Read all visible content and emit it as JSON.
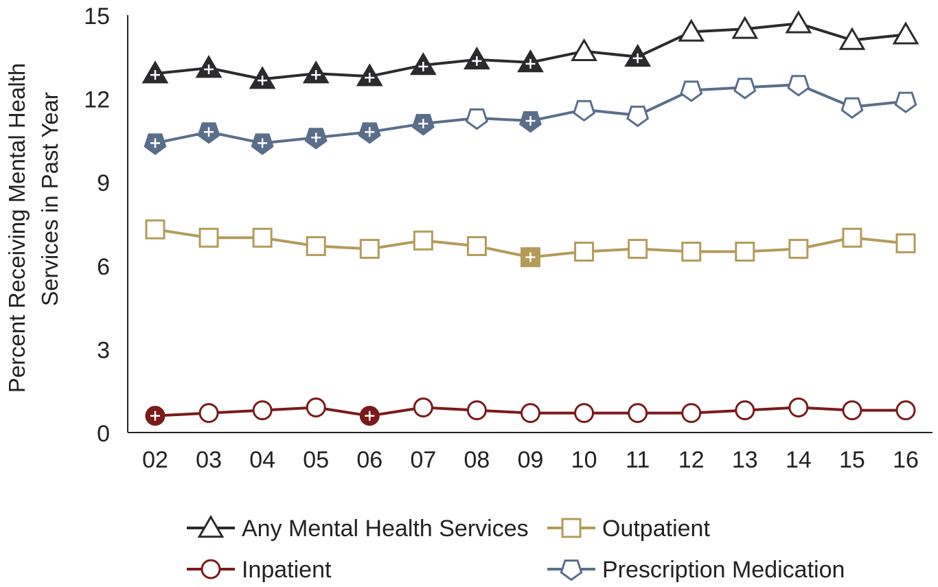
{
  "chart_data": {
    "type": "line",
    "title": "",
    "xlabel": "",
    "ylabel_lines": [
      "Percent Receiving Mental Health",
      "Services in Past Year"
    ],
    "categories": [
      "02",
      "03",
      "04",
      "05",
      "06",
      "07",
      "08",
      "09",
      "10",
      "11",
      "12",
      "13",
      "14",
      "15",
      "16"
    ],
    "ylim": [
      0,
      15
    ],
    "yticks": [
      "0",
      "3",
      "6",
      "9",
      "12",
      "15"
    ],
    "grid": false,
    "legend_position": "bottom",
    "series": [
      {
        "name": "Any Mental Health Services",
        "marker": "triangle",
        "color": "#2b2b2e",
        "values": [
          12.9,
          13.1,
          12.7,
          12.9,
          12.8,
          13.2,
          13.4,
          13.3,
          13.7,
          13.5,
          14.4,
          14.5,
          14.7,
          14.1,
          14.3
        ],
        "significant": [
          true,
          true,
          true,
          true,
          true,
          true,
          true,
          true,
          false,
          true,
          false,
          false,
          false,
          false,
          false
        ]
      },
      {
        "name": "Prescription Medication",
        "marker": "pentagon",
        "color": "#5a6e8a",
        "values": [
          10.4,
          10.8,
          10.4,
          10.6,
          10.8,
          11.1,
          11.3,
          11.2,
          11.6,
          11.4,
          12.3,
          12.4,
          12.5,
          11.7,
          11.9
        ],
        "significant": [
          true,
          true,
          true,
          true,
          true,
          true,
          false,
          true,
          false,
          false,
          false,
          false,
          false,
          false,
          false
        ]
      },
      {
        "name": "Outpatient",
        "marker": "square",
        "color": "#b39c5a",
        "values": [
          7.3,
          7.0,
          7.0,
          6.7,
          6.6,
          6.9,
          6.7,
          6.3,
          6.5,
          6.6,
          6.5,
          6.5,
          6.6,
          7.0,
          6.8
        ],
        "significant": [
          false,
          false,
          false,
          false,
          false,
          false,
          false,
          true,
          false,
          false,
          false,
          false,
          false,
          false,
          false
        ]
      },
      {
        "name": "Inpatient",
        "marker": "circle",
        "color": "#7a1a1a",
        "values": [
          0.6,
          0.7,
          0.8,
          0.9,
          0.6,
          0.9,
          0.8,
          0.7,
          0.7,
          0.7,
          0.7,
          0.8,
          0.9,
          0.8,
          0.8
        ],
        "significant": [
          true,
          false,
          false,
          false,
          true,
          false,
          false,
          false,
          false,
          false,
          false,
          false,
          false,
          false,
          false
        ]
      }
    ],
    "legend": [
      {
        "name": "Any Mental Health Services",
        "marker": "triangle",
        "color": "#2b2b2e"
      },
      {
        "name": "Outpatient",
        "marker": "square",
        "color": "#b39c5a"
      },
      {
        "name": "Inpatient",
        "marker": "circle",
        "color": "#7a1a1a"
      },
      {
        "name": "Prescription Medication",
        "marker": "pentagon",
        "color": "#5a6e8a"
      }
    ]
  }
}
